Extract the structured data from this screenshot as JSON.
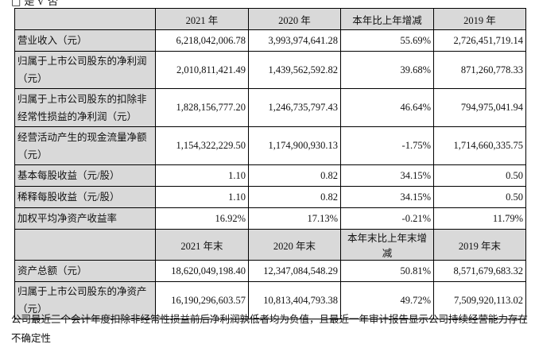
{
  "top_text": "□ 是 √ 否",
  "header1": [
    "",
    "2021 年",
    "2020 年",
    "本年比上年增减",
    "2019 年"
  ],
  "rows1": [
    {
      "label": "营业收入（元）",
      "values": [
        "6,218,042,006.78",
        "3,993,974,641.28",
        "55.69%",
        "2,726,451,719.14"
      ]
    },
    {
      "label": "归属于上市公司股东的净利润（元）",
      "values": [
        "2,010,811,421.49",
        "1,439,562,592.82",
        "39.68%",
        "871,260,778.33"
      ]
    },
    {
      "label": "归属于上市公司股东的扣除非经常性损益的净利润（元）",
      "values": [
        "1,828,156,777.20",
        "1,246,735,797.43",
        "46.64%",
        "794,975,041.94"
      ]
    },
    {
      "label": "经营活动产生的现金流量净额（元）",
      "values": [
        "1,154,322,229.50",
        "1,174,900,930.13",
        "-1.75%",
        "1,714,660,335.75"
      ]
    },
    {
      "label": "基本每股收益（元/股）",
      "values": [
        "1.10",
        "0.82",
        "34.15%",
        "0.50"
      ]
    },
    {
      "label": "稀释每股收益（元/股）",
      "values": [
        "1.10",
        "0.82",
        "34.15%",
        "0.50"
      ]
    },
    {
      "label": "加权平均净资产收益率",
      "values": [
        "16.92%",
        "17.13%",
        "-0.21%",
        "11.79%"
      ]
    }
  ],
  "header2": [
    "",
    "2021 年末",
    "2020 年末",
    "本年末比上年末增减",
    "2019 年末"
  ],
  "rows2": [
    {
      "label": "资产总额（元）",
      "values": [
        "18,620,049,198.40",
        "12,347,084,548.29",
        "50.81%",
        "8,571,679,683.32"
      ]
    },
    {
      "label": "归属于上市公司股东的净资产（元）",
      "values": [
        "16,190,296,603.57",
        "10,813,404,793.38",
        "49.72%",
        "7,509,920,113.02"
      ]
    }
  ],
  "note": "公司最近三个会计年度扣除非经常性损益前后净利润孰低者均为负值，且最近一年审计报告显示公司持续经营能力存在不确定性"
}
